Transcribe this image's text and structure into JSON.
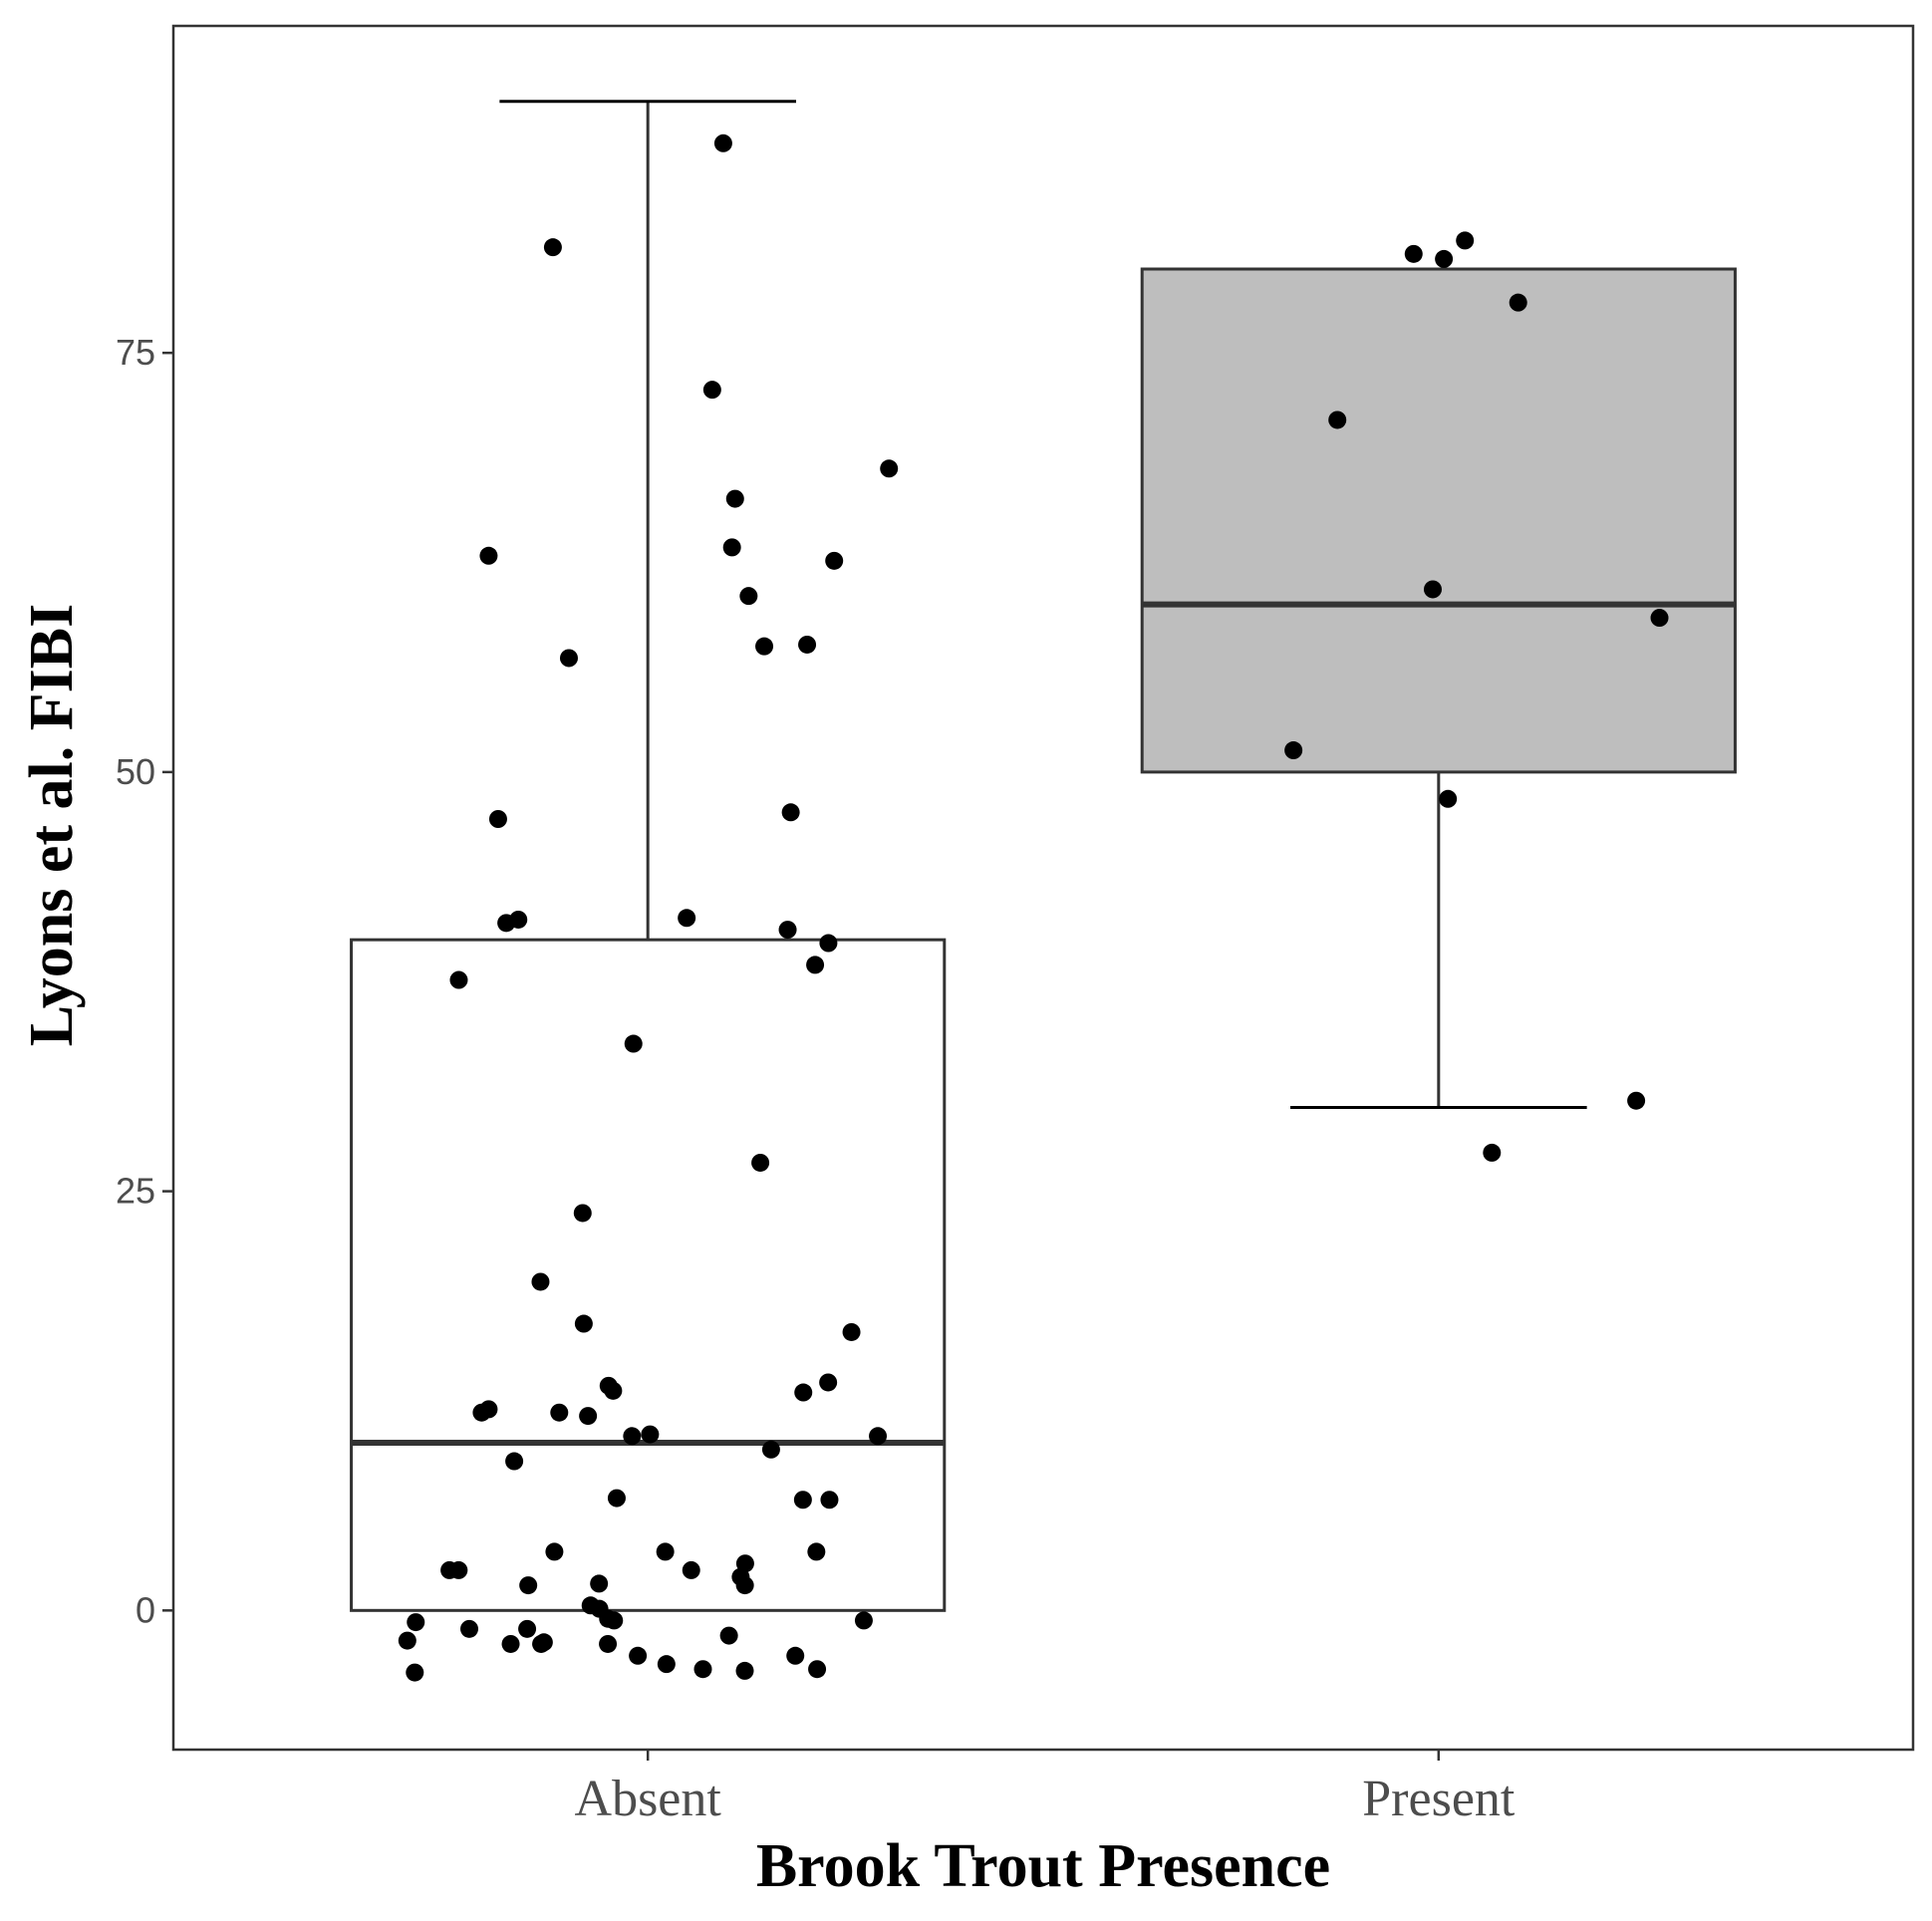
{
  "chart_data": {
    "type": "box",
    "title": "",
    "xlabel": "Brook Trout Presence",
    "ylabel": "Lyons et al. FIBI",
    "categories": [
      "Absent",
      "Present"
    ],
    "y_ticks": [
      0,
      25,
      50,
      75
    ],
    "y_tick_labels": [
      "0",
      "25",
      "50",
      "75"
    ],
    "ylim": [
      -8.3,
      94.5
    ],
    "grid": false,
    "legend": "none",
    "colors": {
      "absent_fill": "#ffffff",
      "present_fill": "#bebebe",
      "box_stroke": "#333333",
      "point": "#000000"
    },
    "boxes": [
      {
        "category": "Absent",
        "q1": 0,
        "median": 10,
        "q3": 40,
        "whisker_low": 0,
        "whisker_high": 90
      },
      {
        "category": "Present",
        "q1": 50,
        "median": 60,
        "q3": 80,
        "whisker_low": 30,
        "whisker_high": 80
      }
    ],
    "points": [
      {
        "category": "Absent",
        "values": [
          87.5,
          81.3,
          72.8,
          68.1,
          66.3,
          63.4,
          62.9,
          62.6,
          60.5,
          57.6,
          57.5,
          56.8,
          47.6,
          47.2,
          41.3,
          41.2,
          41.0,
          40.6,
          39.8,
          38.5,
          37.6,
          33.8,
          26.7,
          23.7,
          19.6,
          17.1,
          16.6,
          13.6,
          13.4,
          13.1,
          13.0,
          12.0,
          11.8,
          11.8,
          11.6,
          10.5,
          10.4,
          10.4,
          9.6,
          8.9,
          6.7,
          6.6,
          6.6,
          3.5,
          3.5,
          3.5,
          2.8,
          2.4,
          2.4,
          2.4,
          2.0,
          1.6,
          1.5,
          1.5,
          0.3,
          0.1,
          -0.5,
          -0.6,
          -0.6,
          -0.7,
          -1.1,
          -1.1,
          -1.5,
          -1.8,
          -1.9,
          -2.0,
          -2.0,
          -2.0,
          -2.7,
          -2.7,
          -3.2,
          -3.5,
          -3.5,
          -3.6,
          -3.7
        ]
      },
      {
        "category": "Present",
        "values": [
          81.7,
          80.9,
          80.6,
          78.0,
          71.0,
          60.9,
          59.2,
          51.3,
          48.4,
          30.4,
          27.3
        ]
      }
    ]
  }
}
